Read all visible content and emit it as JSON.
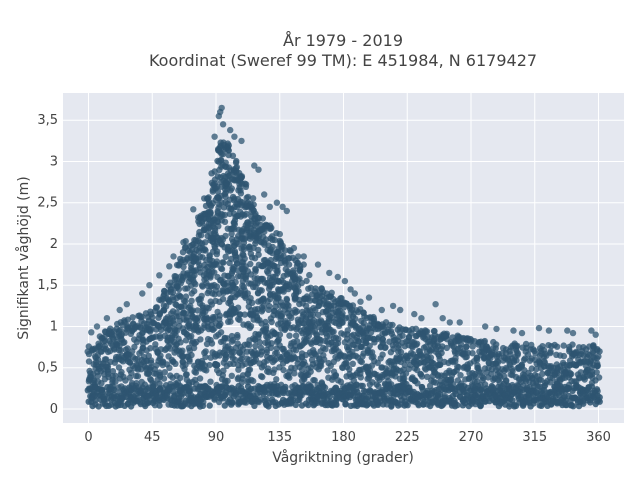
{
  "chart_data": {
    "type": "scatter",
    "title_lines": [
      "År 1979 - 2019",
      "Koordinat (Sweref 99 TM): E 451984, N 6179427"
    ],
    "xlabel": "Vågriktning (grader)",
    "ylabel": "Signifikant våghöjd (m)",
    "xlim": [
      -18,
      378
    ],
    "ylim": [
      -0.17,
      3.83
    ],
    "x_ticks": [
      {
        "value": 0,
        "label": "0"
      },
      {
        "value": 45,
        "label": "45"
      },
      {
        "value": 90,
        "label": "90"
      },
      {
        "value": 135,
        "label": "135"
      },
      {
        "value": 180,
        "label": "180"
      },
      {
        "value": 225,
        "label": "225"
      },
      {
        "value": 270,
        "label": "270"
      },
      {
        "value": 315,
        "label": "315"
      },
      {
        "value": 360,
        "label": "360"
      }
    ],
    "y_ticks": [
      {
        "value": 0,
        "label": "0"
      },
      {
        "value": 0.5,
        "label": "0,5"
      },
      {
        "value": 1,
        "label": "1"
      },
      {
        "value": 1.5,
        "label": "1,5"
      },
      {
        "value": 2,
        "label": "2"
      },
      {
        "value": 2.5,
        "label": "2,5"
      },
      {
        "value": 3,
        "label": "3"
      },
      {
        "value": 3.5,
        "label": "3,5"
      }
    ],
    "grid": true,
    "marker_color": "#2e5571",
    "background_color": "#e5e8f0",
    "envelope": [
      {
        "x": 0,
        "y": 0.78
      },
      {
        "x": 5,
        "y": 0.85
      },
      {
        "x": 10,
        "y": 0.95
      },
      {
        "x": 15,
        "y": 1.0
      },
      {
        "x": 20,
        "y": 1.05
      },
      {
        "x": 25,
        "y": 1.12
      },
      {
        "x": 30,
        "y": 1.15
      },
      {
        "x": 35,
        "y": 1.15
      },
      {
        "x": 40,
        "y": 1.2
      },
      {
        "x": 45,
        "y": 1.28
      },
      {
        "x": 50,
        "y": 1.4
      },
      {
        "x": 55,
        "y": 1.5
      },
      {
        "x": 60,
        "y": 1.7
      },
      {
        "x": 65,
        "y": 1.9
      },
      {
        "x": 70,
        "y": 2.1
      },
      {
        "x": 75,
        "y": 2.2
      },
      {
        "x": 80,
        "y": 2.45
      },
      {
        "x": 85,
        "y": 2.75
      },
      {
        "x": 88,
        "y": 2.95
      },
      {
        "x": 90,
        "y": 3.1
      },
      {
        "x": 93,
        "y": 3.25
      },
      {
        "x": 96,
        "y": 3.3
      },
      {
        "x": 100,
        "y": 3.2
      },
      {
        "x": 105,
        "y": 3.05
      },
      {
        "x": 110,
        "y": 2.8
      },
      {
        "x": 115,
        "y": 2.6
      },
      {
        "x": 120,
        "y": 2.4
      },
      {
        "x": 125,
        "y": 2.3
      },
      {
        "x": 130,
        "y": 2.2
      },
      {
        "x": 135,
        "y": 2.1
      },
      {
        "x": 140,
        "y": 2.0
      },
      {
        "x": 145,
        "y": 1.9
      },
      {
        "x": 150,
        "y": 1.8
      },
      {
        "x": 155,
        "y": 1.7
      },
      {
        "x": 160,
        "y": 1.55
      },
      {
        "x": 165,
        "y": 1.5
      },
      {
        "x": 170,
        "y": 1.45
      },
      {
        "x": 175,
        "y": 1.4
      },
      {
        "x": 180,
        "y": 1.35
      },
      {
        "x": 185,
        "y": 1.3
      },
      {
        "x": 190,
        "y": 1.25
      },
      {
        "x": 195,
        "y": 1.2
      },
      {
        "x": 200,
        "y": 1.15
      },
      {
        "x": 205,
        "y": 1.1
      },
      {
        "x": 210,
        "y": 1.08
      },
      {
        "x": 215,
        "y": 1.05
      },
      {
        "x": 220,
        "y": 1.02
      },
      {
        "x": 225,
        "y": 1.0
      },
      {
        "x": 230,
        "y": 1.0
      },
      {
        "x": 235,
        "y": 0.98
      },
      {
        "x": 240,
        "y": 0.98
      },
      {
        "x": 245,
        "y": 0.97
      },
      {
        "x": 250,
        "y": 0.95
      },
      {
        "x": 255,
        "y": 0.95
      },
      {
        "x": 260,
        "y": 0.92
      },
      {
        "x": 265,
        "y": 0.9
      },
      {
        "x": 270,
        "y": 0.88
      },
      {
        "x": 275,
        "y": 0.87
      },
      {
        "x": 280,
        "y": 0.86
      },
      {
        "x": 285,
        "y": 0.85
      },
      {
        "x": 290,
        "y": 0.85
      },
      {
        "x": 295,
        "y": 0.84
      },
      {
        "x": 300,
        "y": 0.83
      },
      {
        "x": 305,
        "y": 0.82
      },
      {
        "x": 310,
        "y": 0.82
      },
      {
        "x": 315,
        "y": 0.82
      },
      {
        "x": 320,
        "y": 0.81
      },
      {
        "x": 325,
        "y": 0.8
      },
      {
        "x": 330,
        "y": 0.8
      },
      {
        "x": 335,
        "y": 0.8
      },
      {
        "x": 340,
        "y": 0.8
      },
      {
        "x": 345,
        "y": 0.8
      },
      {
        "x": 350,
        "y": 0.8
      },
      {
        "x": 355,
        "y": 0.8
      },
      {
        "x": 360,
        "y": 0.8
      }
    ],
    "outliers": [
      {
        "x": 94,
        "y": 3.65
      },
      {
        "x": 93,
        "y": 3.6
      },
      {
        "x": 92,
        "y": 3.55
      },
      {
        "x": 95,
        "y": 3.45
      },
      {
        "x": 89,
        "y": 3.3
      },
      {
        "x": 100,
        "y": 3.38
      },
      {
        "x": 103,
        "y": 3.3
      },
      {
        "x": 108,
        "y": 3.25
      },
      {
        "x": 117,
        "y": 2.95
      },
      {
        "x": 120,
        "y": 2.9
      },
      {
        "x": 124,
        "y": 2.6
      },
      {
        "x": 128,
        "y": 2.45
      },
      {
        "x": 133,
        "y": 2.5
      },
      {
        "x": 137,
        "y": 2.45
      },
      {
        "x": 140,
        "y": 2.4
      },
      {
        "x": 135,
        "y": 2.12
      },
      {
        "x": 145,
        "y": 1.95
      },
      {
        "x": 148,
        "y": 1.85
      },
      {
        "x": 152,
        "y": 1.85
      },
      {
        "x": 162,
        "y": 1.75
      },
      {
        "x": 170,
        "y": 1.65
      },
      {
        "x": 176,
        "y": 1.6
      },
      {
        "x": 181,
        "y": 1.55
      },
      {
        "x": 185,
        "y": 1.45
      },
      {
        "x": 188,
        "y": 1.4
      },
      {
        "x": 192,
        "y": 1.3
      },
      {
        "x": 198,
        "y": 1.35
      },
      {
        "x": 207,
        "y": 1.2
      },
      {
        "x": 215,
        "y": 1.25
      },
      {
        "x": 220,
        "y": 1.2
      },
      {
        "x": 230,
        "y": 1.15
      },
      {
        "x": 235,
        "y": 1.1
      },
      {
        "x": 245,
        "y": 1.27
      },
      {
        "x": 250,
        "y": 1.1
      },
      {
        "x": 255,
        "y": 1.05
      },
      {
        "x": 262,
        "y": 1.05
      },
      {
        "x": 280,
        "y": 1.0
      },
      {
        "x": 288,
        "y": 0.97
      },
      {
        "x": 300,
        "y": 0.95
      },
      {
        "x": 306,
        "y": 0.92
      },
      {
        "x": 318,
        "y": 0.98
      },
      {
        "x": 325,
        "y": 0.95
      },
      {
        "x": 338,
        "y": 0.95
      },
      {
        "x": 342,
        "y": 0.92
      },
      {
        "x": 355,
        "y": 0.95
      },
      {
        "x": 358,
        "y": 0.9
      },
      {
        "x": 74,
        "y": 2.42
      },
      {
        "x": 67,
        "y": 2.02
      },
      {
        "x": 60,
        "y": 1.85
      },
      {
        "x": 57,
        "y": 1.73
      },
      {
        "x": 50,
        "y": 1.62
      },
      {
        "x": 43,
        "y": 1.5
      },
      {
        "x": 38,
        "y": 1.4
      },
      {
        "x": 27,
        "y": 1.27
      },
      {
        "x": 22,
        "y": 1.2
      },
      {
        "x": 13,
        "y": 1.1
      },
      {
        "x": 6,
        "y": 1.0
      },
      {
        "x": 2,
        "y": 0.93
      }
    ]
  }
}
